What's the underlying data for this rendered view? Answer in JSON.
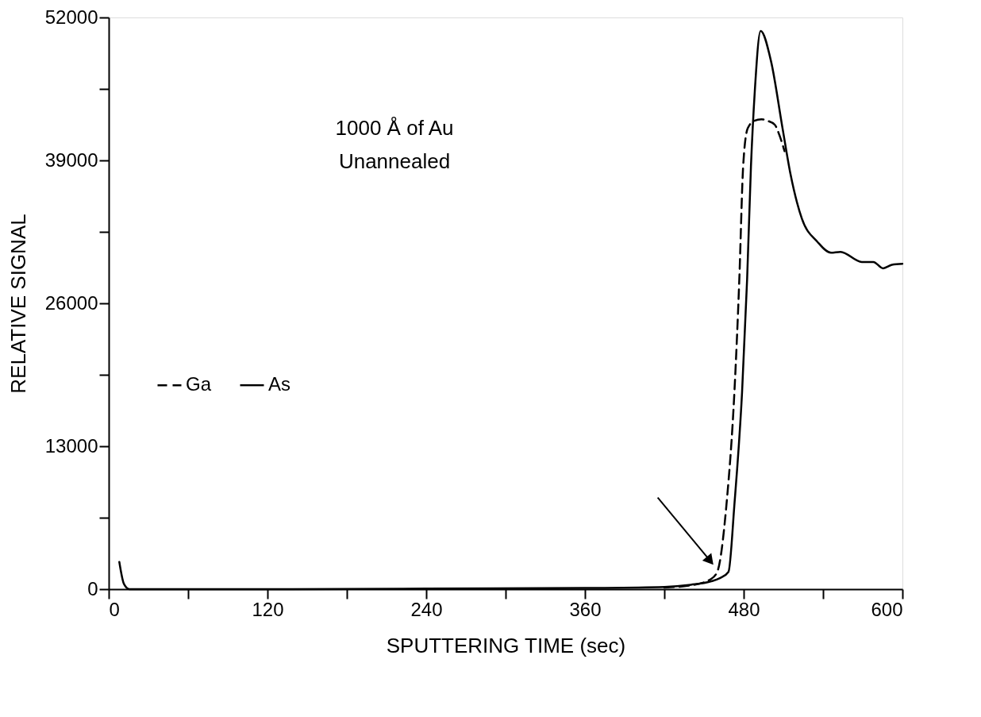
{
  "chart_data": {
    "type": "line",
    "xlabel": "SPUTTERING TIME (sec)",
    "ylabel": "RELATIVE SIGNAL",
    "annotations": [
      "1000 Å of Au",
      "Unannealed"
    ],
    "series": [
      {
        "name": "Ga",
        "color": "#000000",
        "line_style": "dashed",
        "x": [
          420,
          440,
          455,
          460,
          467,
          473,
          476.7,
          479.6,
          483,
          488,
          493.4,
          498,
          503.6,
          507,
          510.9
        ],
        "values": [
          150,
          350,
          900,
          1570,
          7720,
          17970,
          28200,
          38470,
          41900,
          42600,
          42740,
          42600,
          42230,
          41300,
          39840
        ]
      },
      {
        "name": "As",
        "color": "#000000",
        "line_style": "solid",
        "x": [
          8,
          11.5,
          15.6,
          60,
          120,
          240,
          360,
          420,
          440,
          455,
          462,
          468.5,
          473,
          478.8,
          482.6,
          485.5,
          488.4,
          492.8,
          500.7,
          509.4,
          515.3,
          524,
          535.7,
          546,
          553.2,
          569.3,
          578,
          585.4,
          592,
          600
        ],
        "values": [
          2480,
          480,
          0,
          0,
          0,
          50,
          100,
          200,
          400,
          700,
          1000,
          1570,
          7720,
          17970,
          28200,
          38470,
          45300,
          50770,
          48000,
          41900,
          37800,
          33700,
          31600,
          30600,
          30680,
          29760,
          29760,
          29180,
          29500,
          29590
        ]
      }
    ],
    "xlim": [
      0,
      600
    ],
    "xticks": [
      0,
      {
        "value": 60,
        "label": null
      },
      120,
      {
        "value": 180,
        "label": null
      },
      240,
      {
        "value": 300,
        "label": null
      },
      360,
      {
        "value": 420,
        "label": null
      },
      480,
      {
        "value": 540,
        "label": null
      },
      600
    ],
    "ylim": [
      0,
      52000
    ],
    "yticks": [
      0,
      {
        "value": 6500,
        "label": null
      },
      13000,
      {
        "value": 19500,
        "label": null
      },
      26000,
      {
        "value": 32500,
        "label": null
      },
      39000,
      {
        "value": 45500,
        "label": null
      },
      52000
    ],
    "legend": "left",
    "grid": false
  }
}
